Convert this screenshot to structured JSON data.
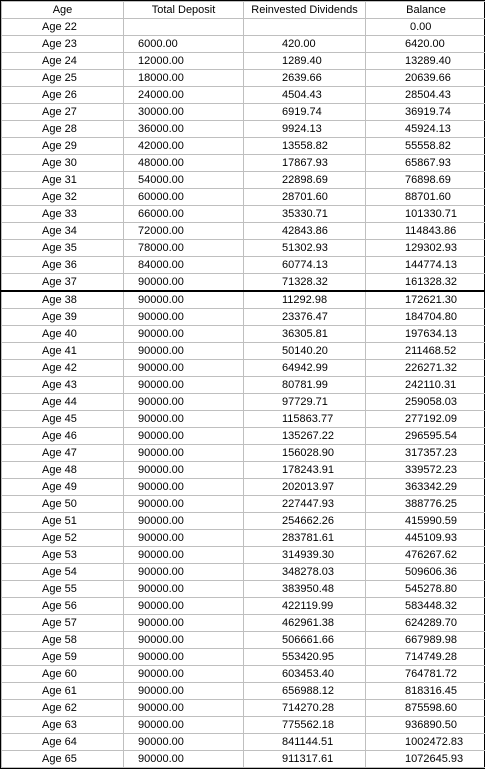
{
  "headers": {
    "age": "Age",
    "deposit": "Total Deposit",
    "dividends": "Reinvested Dividends",
    "balance": "Balance"
  },
  "section_break_after_row": 15,
  "rows": [
    {
      "age": "Age 22",
      "deposit": "",
      "dividends": "",
      "balance": "0.00"
    },
    {
      "age": "Age 23",
      "deposit": "6000.00",
      "dividends": "420.00",
      "balance": "6420.00"
    },
    {
      "age": "Age 24",
      "deposit": "12000.00",
      "dividends": "1289.40",
      "balance": "13289.40"
    },
    {
      "age": "Age 25",
      "deposit": "18000.00",
      "dividends": "2639.66",
      "balance": "20639.66"
    },
    {
      "age": "Age 26",
      "deposit": "24000.00",
      "dividends": "4504.43",
      "balance": "28504.43"
    },
    {
      "age": "Age 27",
      "deposit": "30000.00",
      "dividends": "6919.74",
      "balance": "36919.74"
    },
    {
      "age": "Age 28",
      "deposit": "36000.00",
      "dividends": "9924.13",
      "balance": "45924.13"
    },
    {
      "age": "Age 29",
      "deposit": "42000.00",
      "dividends": "13558.82",
      "balance": "55558.82"
    },
    {
      "age": "Age 30",
      "deposit": "48000.00",
      "dividends": "17867.93",
      "balance": "65867.93"
    },
    {
      "age": "Age 31",
      "deposit": "54000.00",
      "dividends": "22898.69",
      "balance": "76898.69"
    },
    {
      "age": "Age 32",
      "deposit": "60000.00",
      "dividends": "28701.60",
      "balance": "88701.60"
    },
    {
      "age": "Age 33",
      "deposit": "66000.00",
      "dividends": "35330.71",
      "balance": "101330.71"
    },
    {
      "age": "Age 34",
      "deposit": "72000.00",
      "dividends": "42843.86",
      "balance": "114843.86"
    },
    {
      "age": "Age 35",
      "deposit": "78000.00",
      "dividends": "51302.93",
      "balance": "129302.93"
    },
    {
      "age": "Age 36",
      "deposit": "84000.00",
      "dividends": "60774.13",
      "balance": "144774.13"
    },
    {
      "age": "Age 37",
      "deposit": "90000.00",
      "dividends": "71328.32",
      "balance": "161328.32"
    },
    {
      "age": "Age 38",
      "deposit": "90000.00",
      "dividends": "11292.98",
      "balance": "172621.30"
    },
    {
      "age": "Age 39",
      "deposit": "90000.00",
      "dividends": "23376.47",
      "balance": "184704.80"
    },
    {
      "age": "Age 40",
      "deposit": "90000.00",
      "dividends": "36305.81",
      "balance": "197634.13"
    },
    {
      "age": "Age 41",
      "deposit": "90000.00",
      "dividends": "50140.20",
      "balance": "211468.52"
    },
    {
      "age": "Age 42",
      "deposit": "90000.00",
      "dividends": "64942.99",
      "balance": "226271.32"
    },
    {
      "age": "Age 43",
      "deposit": "90000.00",
      "dividends": "80781.99",
      "balance": "242110.31"
    },
    {
      "age": "Age 44",
      "deposit": "90000.00",
      "dividends": "97729.71",
      "balance": "259058.03"
    },
    {
      "age": "Age 45",
      "deposit": "90000.00",
      "dividends": "115863.77",
      "balance": "277192.09"
    },
    {
      "age": "Age 46",
      "deposit": "90000.00",
      "dividends": "135267.22",
      "balance": "296595.54"
    },
    {
      "age": "Age 47",
      "deposit": "90000.00",
      "dividends": "156028.90",
      "balance": "317357.23"
    },
    {
      "age": "Age 48",
      "deposit": "90000.00",
      "dividends": "178243.91",
      "balance": "339572.23"
    },
    {
      "age": "Age 49",
      "deposit": "90000.00",
      "dividends": "202013.97",
      "balance": "363342.29"
    },
    {
      "age": "Age 50",
      "deposit": "90000.00",
      "dividends": "227447.93",
      "balance": "388776.25"
    },
    {
      "age": "Age 51",
      "deposit": "90000.00",
      "dividends": "254662.26",
      "balance": "415990.59"
    },
    {
      "age": "Age 52",
      "deposit": "90000.00",
      "dividends": "283781.61",
      "balance": "445109.93"
    },
    {
      "age": "Age 53",
      "deposit": "90000.00",
      "dividends": "314939.30",
      "balance": "476267.62"
    },
    {
      "age": "Age 54",
      "deposit": "90000.00",
      "dividends": "348278.03",
      "balance": "509606.36"
    },
    {
      "age": "Age 55",
      "deposit": "90000.00",
      "dividends": "383950.48",
      "balance": "545278.80"
    },
    {
      "age": "Age 56",
      "deposit": "90000.00",
      "dividends": "422119.99",
      "balance": "583448.32"
    },
    {
      "age": "Age 57",
      "deposit": "90000.00",
      "dividends": "462961.38",
      "balance": "624289.70"
    },
    {
      "age": "Age 58",
      "deposit": "90000.00",
      "dividends": "506661.66",
      "balance": "667989.98"
    },
    {
      "age": "Age 59",
      "deposit": "90000.00",
      "dividends": "553420.95",
      "balance": "714749.28"
    },
    {
      "age": "Age 60",
      "deposit": "90000.00",
      "dividends": "603453.40",
      "balance": "764781.72"
    },
    {
      "age": "Age 61",
      "deposit": "90000.00",
      "dividends": "656988.12",
      "balance": "818316.45"
    },
    {
      "age": "Age 62",
      "deposit": "90000.00",
      "dividends": "714270.28",
      "balance": "875598.60"
    },
    {
      "age": "Age 63",
      "deposit": "90000.00",
      "dividends": "775562.18",
      "balance": "936890.50"
    },
    {
      "age": "Age 64",
      "deposit": "90000.00",
      "dividends": "841144.51",
      "balance": "1002472.83"
    },
    {
      "age": "Age 65",
      "deposit": "90000.00",
      "dividends": "911317.61",
      "balance": "1072645.93"
    }
  ]
}
